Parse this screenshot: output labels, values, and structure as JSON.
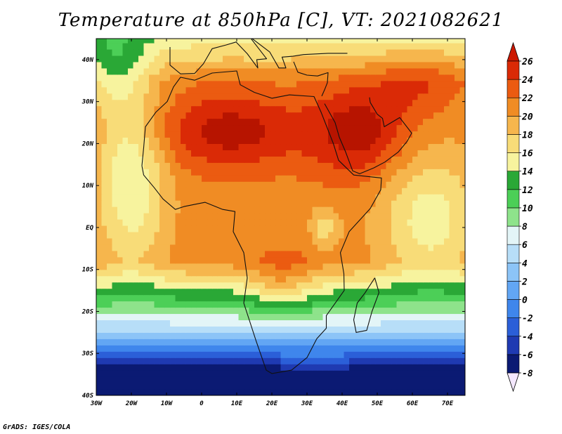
{
  "title": "Temperature at 850hPa [C], VT: 2021082621",
  "credit": "GrADS: IGES/COLA",
  "chart_data": {
    "type": "heatmap",
    "title": "Temperature at 850hPa [C], VT: 2021082621",
    "variable": "Temperature at 850hPa",
    "unit": "C",
    "valid_time": "2021082621",
    "map_region": "Africa",
    "x_axis": {
      "label": "",
      "range": [
        -30,
        75
      ],
      "tick_values": [
        -30,
        -20,
        -10,
        0,
        10,
        20,
        30,
        40,
        50,
        60,
        70
      ],
      "tick_labels": [
        "30W",
        "20W",
        "10W",
        "0",
        "10E",
        "20E",
        "30E",
        "40E",
        "50E",
        "60E",
        "70E"
      ]
    },
    "y_axis": {
      "label": "",
      "range": [
        -40,
        45
      ],
      "tick_values": [
        -40,
        -30,
        -20,
        -10,
        0,
        10,
        20,
        30,
        40
      ],
      "tick_labels": [
        "40S",
        "30S",
        "20S",
        "10S",
        "EQ",
        "10N",
        "20N",
        "30N",
        "40N"
      ]
    },
    "colorbar": {
      "levels": [
        -8,
        -6,
        -4,
        -2,
        0,
        2,
        4,
        6,
        8,
        10,
        12,
        14,
        16,
        18,
        20,
        22,
        24,
        26
      ],
      "labels": [
        "-8",
        "-6",
        "-4",
        "-2",
        "0",
        "2",
        "4",
        "6",
        "8",
        "10",
        "12",
        "14",
        "16",
        "18",
        "20",
        "22",
        "24",
        "26"
      ],
      "colors": [
        "#0b1a73",
        "#1f3ab2",
        "#2b5fd8",
        "#3f86ec",
        "#62a6f4",
        "#8cc4f7",
        "#b7def8",
        "#e3f5f7",
        "#8ee38b",
        "#4ccf57",
        "#2aa836",
        "#f7f39e",
        "#f8dc78",
        "#f6b64d",
        "#f08c24",
        "#eb5b11",
        "#da2a06",
        "#b71400"
      ],
      "min_arrow_color": "#f4e8ff",
      "max_arrow_color": "#cc1800"
    }
  }
}
